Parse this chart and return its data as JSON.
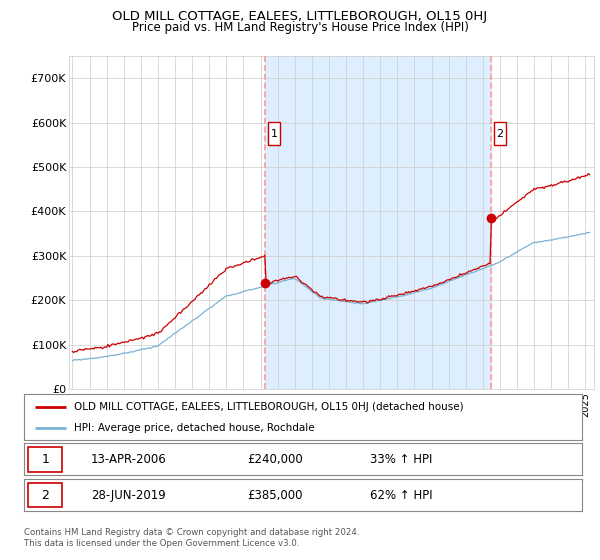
{
  "title": "OLD MILL COTTAGE, EALEES, LITTLEBOROUGH, OL15 0HJ",
  "subtitle": "Price paid vs. HM Land Registry's House Price Index (HPI)",
  "red_label": "OLD MILL COTTAGE, EALEES, LITTLEBOROUGH, OL15 0HJ (detached house)",
  "blue_label": "HPI: Average price, detached house, Rochdale",
  "sale1_date": "13-APR-2006",
  "sale1_price": "£240,000",
  "sale1_pct": "33% ↑ HPI",
  "sale2_date": "28-JUN-2019",
  "sale2_price": "£385,000",
  "sale2_pct": "62% ↑ HPI",
  "footer": "Contains HM Land Registry data © Crown copyright and database right 2024.\nThis data is licensed under the Open Government Licence v3.0.",
  "ylim": [
    0,
    750000
  ],
  "yticks": [
    0,
    100000,
    200000,
    300000,
    400000,
    500000,
    600000,
    700000
  ],
  "ytick_labels": [
    "£0",
    "£100K",
    "£200K",
    "£300K",
    "£400K",
    "£500K",
    "£600K",
    "£700K"
  ],
  "sale1_x": 2006.28,
  "sale1_y": 240000,
  "sale2_x": 2019.49,
  "sale2_y": 385000,
  "xlim_start": 1994.8,
  "xlim_end": 2025.5,
  "red_color": "#cc0000",
  "blue_color": "#7ab3d4",
  "shade_color": "#ddeeff",
  "vline_color": "#ff9999",
  "background_color": "#ffffff",
  "grid_color": "#cccccc"
}
